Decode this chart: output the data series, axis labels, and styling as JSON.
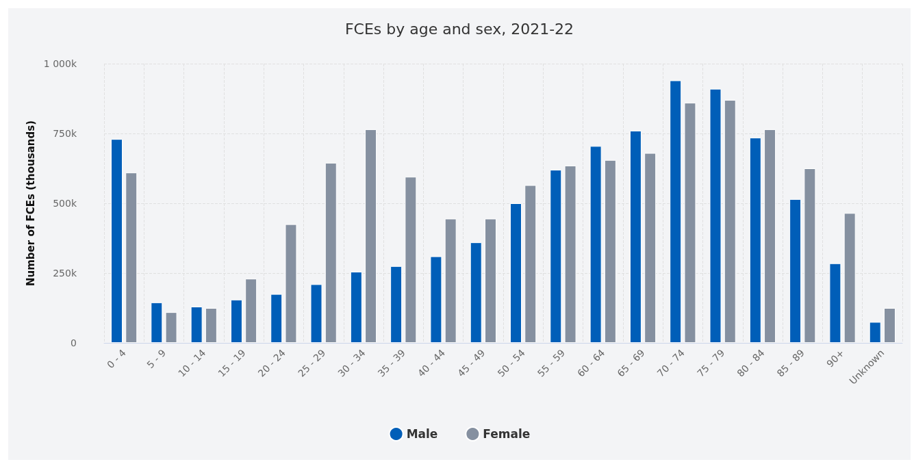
{
  "chart_data": {
    "type": "bar",
    "title": "FCEs by age and sex, 2021-22",
    "ylabel": "Number of FCEs (thousands)",
    "categories": [
      "0 - 4",
      "5 - 9",
      "10 - 14",
      "15 - 19",
      "20 - 24",
      "25 - 29",
      "30 - 34",
      "35 - 39",
      "40 - 44",
      "45 - 49",
      "50 - 54",
      "55 - 59",
      "60 - 64",
      "65 - 69",
      "70 - 74",
      "75 - 79",
      "80 - 84",
      "85 - 89",
      "90+",
      "Unknown"
    ],
    "series": [
      {
        "name": "Male",
        "color": "#005eb8",
        "values": [
          730000,
          145000,
          130000,
          155000,
          175000,
          210000,
          255000,
          275000,
          310000,
          360000,
          500000,
          620000,
          705000,
          760000,
          940000,
          910000,
          735000,
          515000,
          285000,
          75000
        ]
      },
      {
        "name": "Female",
        "color": "#8590a0",
        "values": [
          610000,
          110000,
          125000,
          230000,
          425000,
          645000,
          765000,
          595000,
          445000,
          445000,
          565000,
          635000,
          655000,
          680000,
          860000,
          870000,
          765000,
          625000,
          465000,
          125000
        ]
      }
    ],
    "ylim": [
      0,
      1000000
    ],
    "yticks": [
      {
        "value": 0,
        "label": "0"
      },
      {
        "value": 250000,
        "label": "250k"
      },
      {
        "value": 500000,
        "label": "500k"
      },
      {
        "value": 750000,
        "label": "750k"
      },
      {
        "value": 1000000,
        "label": "1 000k"
      }
    ],
    "grid": true,
    "legend": "bottom"
  }
}
